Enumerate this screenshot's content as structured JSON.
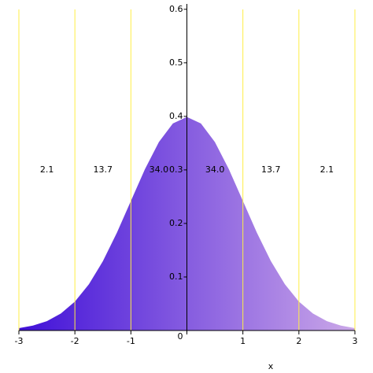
{
  "chart_data": {
    "type": "area",
    "x_label": "x",
    "x": [
      -3,
      -2.75,
      -2.5,
      -2.25,
      -2,
      -1.75,
      -1.5,
      -1.25,
      -1,
      -0.75,
      -0.5,
      -0.25,
      0,
      0.25,
      0.5,
      0.75,
      1,
      1.25,
      1.5,
      1.75,
      2,
      2.25,
      2.5,
      2.75,
      3
    ],
    "values": [
      0.0044,
      0.0091,
      0.0175,
      0.0317,
      0.054,
      0.0863,
      0.1295,
      0.1826,
      0.242,
      0.3011,
      0.3521,
      0.3867,
      0.3989,
      0.3867,
      0.3521,
      0.3011,
      0.242,
      0.1826,
      0.1295,
      0.0863,
      0.054,
      0.0317,
      0.0175,
      0.0091,
      0.0044
    ],
    "color_start": "#4010d8",
    "color_end": "#cba8e8",
    "xlim": [
      -3,
      3
    ],
    "ylim": [
      0,
      0.61
    ],
    "xticks": [
      -3,
      -2,
      -1,
      0,
      1,
      2,
      3
    ],
    "yticks": [
      0,
      0.1,
      0.2,
      0.3,
      0.4,
      0.5,
      0.6
    ],
    "grid_x": true,
    "grid_color": "#ffee44",
    "annotations": [
      {
        "text": "2.1",
        "x": -2.5,
        "y": 0.3
      },
      {
        "text": "13.7",
        "x": -1.5,
        "y": 0.3
      },
      {
        "text": "34.0",
        "x": -0.5,
        "y": 0.3
      },
      {
        "text": "34.0",
        "x": 0.5,
        "y": 0.3
      },
      {
        "text": "13.7",
        "x": 1.5,
        "y": 0.3
      },
      {
        "text": "2.1",
        "x": 2.5,
        "y": 0.3
      }
    ]
  }
}
